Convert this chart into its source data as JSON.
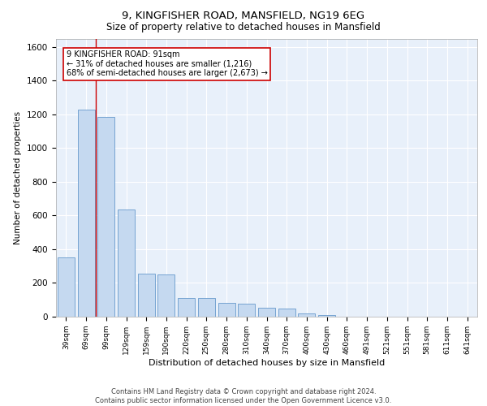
{
  "title1": "9, KINGFISHER ROAD, MANSFIELD, NG19 6EG",
  "title2": "Size of property relative to detached houses in Mansfield",
  "xlabel": "Distribution of detached houses by size in Mansfield",
  "ylabel": "Number of detached properties",
  "categories": [
    "39sqm",
    "69sqm",
    "99sqm",
    "129sqm",
    "159sqm",
    "190sqm",
    "220sqm",
    "250sqm",
    "280sqm",
    "310sqm",
    "340sqm",
    "370sqm",
    "400sqm",
    "430sqm",
    "460sqm",
    "491sqm",
    "521sqm",
    "551sqm",
    "581sqm",
    "611sqm",
    "641sqm"
  ],
  "values": [
    350,
    1230,
    1185,
    635,
    255,
    250,
    110,
    110,
    80,
    75,
    55,
    50,
    20,
    10,
    0,
    0,
    0,
    0,
    0,
    0,
    0
  ],
  "bar_color": "#c5d9f0",
  "bar_edge_color": "#6699cc",
  "red_line_x": 1.5,
  "annotation_box_text": "9 KINGFISHER ROAD: 91sqm\n← 31% of detached houses are smaller (1,216)\n68% of semi-detached houses are larger (2,673) →",
  "ylim": [
    0,
    1650
  ],
  "yticks": [
    0,
    200,
    400,
    600,
    800,
    1000,
    1200,
    1400,
    1600
  ],
  "footer_text": "Contains HM Land Registry data © Crown copyright and database right 2024.\nContains public sector information licensed under the Open Government Licence v3.0.",
  "background_color": "#e8f0fa",
  "grid_color": "#ffffff",
  "bar_width": 0.85
}
